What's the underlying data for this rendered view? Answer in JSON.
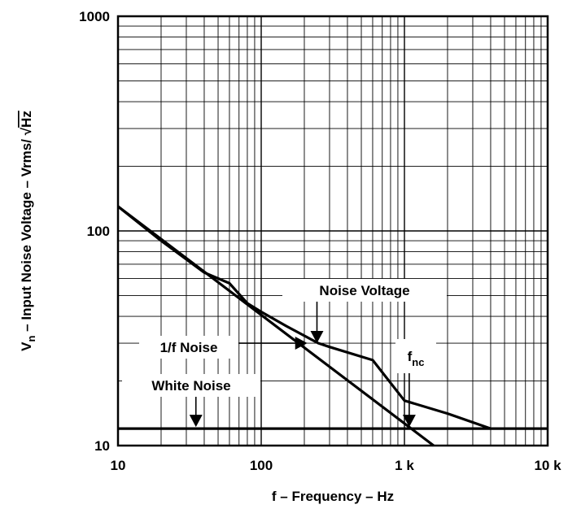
{
  "chart_data": {
    "type": "line",
    "xlabel": "f – Frequency – Hz",
    "ylabel": {
      "prefix": "V",
      "subscript": "n",
      "rest": " – Input Noise Voltage – Vrms/ ",
      "root_symbol": "√",
      "radicand": "Hz"
    },
    "x_scale": "log",
    "y_scale": "log",
    "xlim": [
      10,
      10000
    ],
    "ylim": [
      10,
      1000
    ],
    "grid": true,
    "x_ticks": [
      {
        "value": 10,
        "label": "10"
      },
      {
        "value": 100,
        "label": "100"
      },
      {
        "value": 1000,
        "label": "1 k"
      },
      {
        "value": 10000,
        "label": "10 k"
      }
    ],
    "y_ticks": [
      {
        "value": 10,
        "label": "10"
      },
      {
        "value": 100,
        "label": "100"
      },
      {
        "value": 1000,
        "label": "1000"
      }
    ],
    "series": [
      {
        "name": "Noise Voltage",
        "x": [
          10,
          20,
          40,
          60,
          80,
          100,
          150,
          250,
          300,
          600,
          1000,
          2000,
          4000
        ],
        "y": [
          130,
          90,
          64,
          57,
          46,
          42,
          36,
          30,
          28.8,
          25,
          16.2,
          14.1,
          12
        ]
      },
      {
        "name": "1/f Noise",
        "x": [
          10,
          1600
        ],
        "y": [
          130,
          10
        ]
      },
      {
        "name": "White Noise",
        "x": [
          10,
          10000
        ],
        "y": [
          12,
          12
        ]
      }
    ],
    "annotations": [
      {
        "text": "Noise Voltage",
        "arrow_to": {
          "x": 245,
          "y": 30
        }
      },
      {
        "text": "1/f Noise",
        "arrow_to": {
          "x": 210,
          "y": 30
        }
      },
      {
        "text": "White Noise",
        "arrow_to": {
          "x": 35,
          "y": 12
        }
      },
      {
        "text": "f",
        "subscript": "nc",
        "arrow_to": {
          "x": 1080,
          "y": 12
        }
      }
    ]
  }
}
